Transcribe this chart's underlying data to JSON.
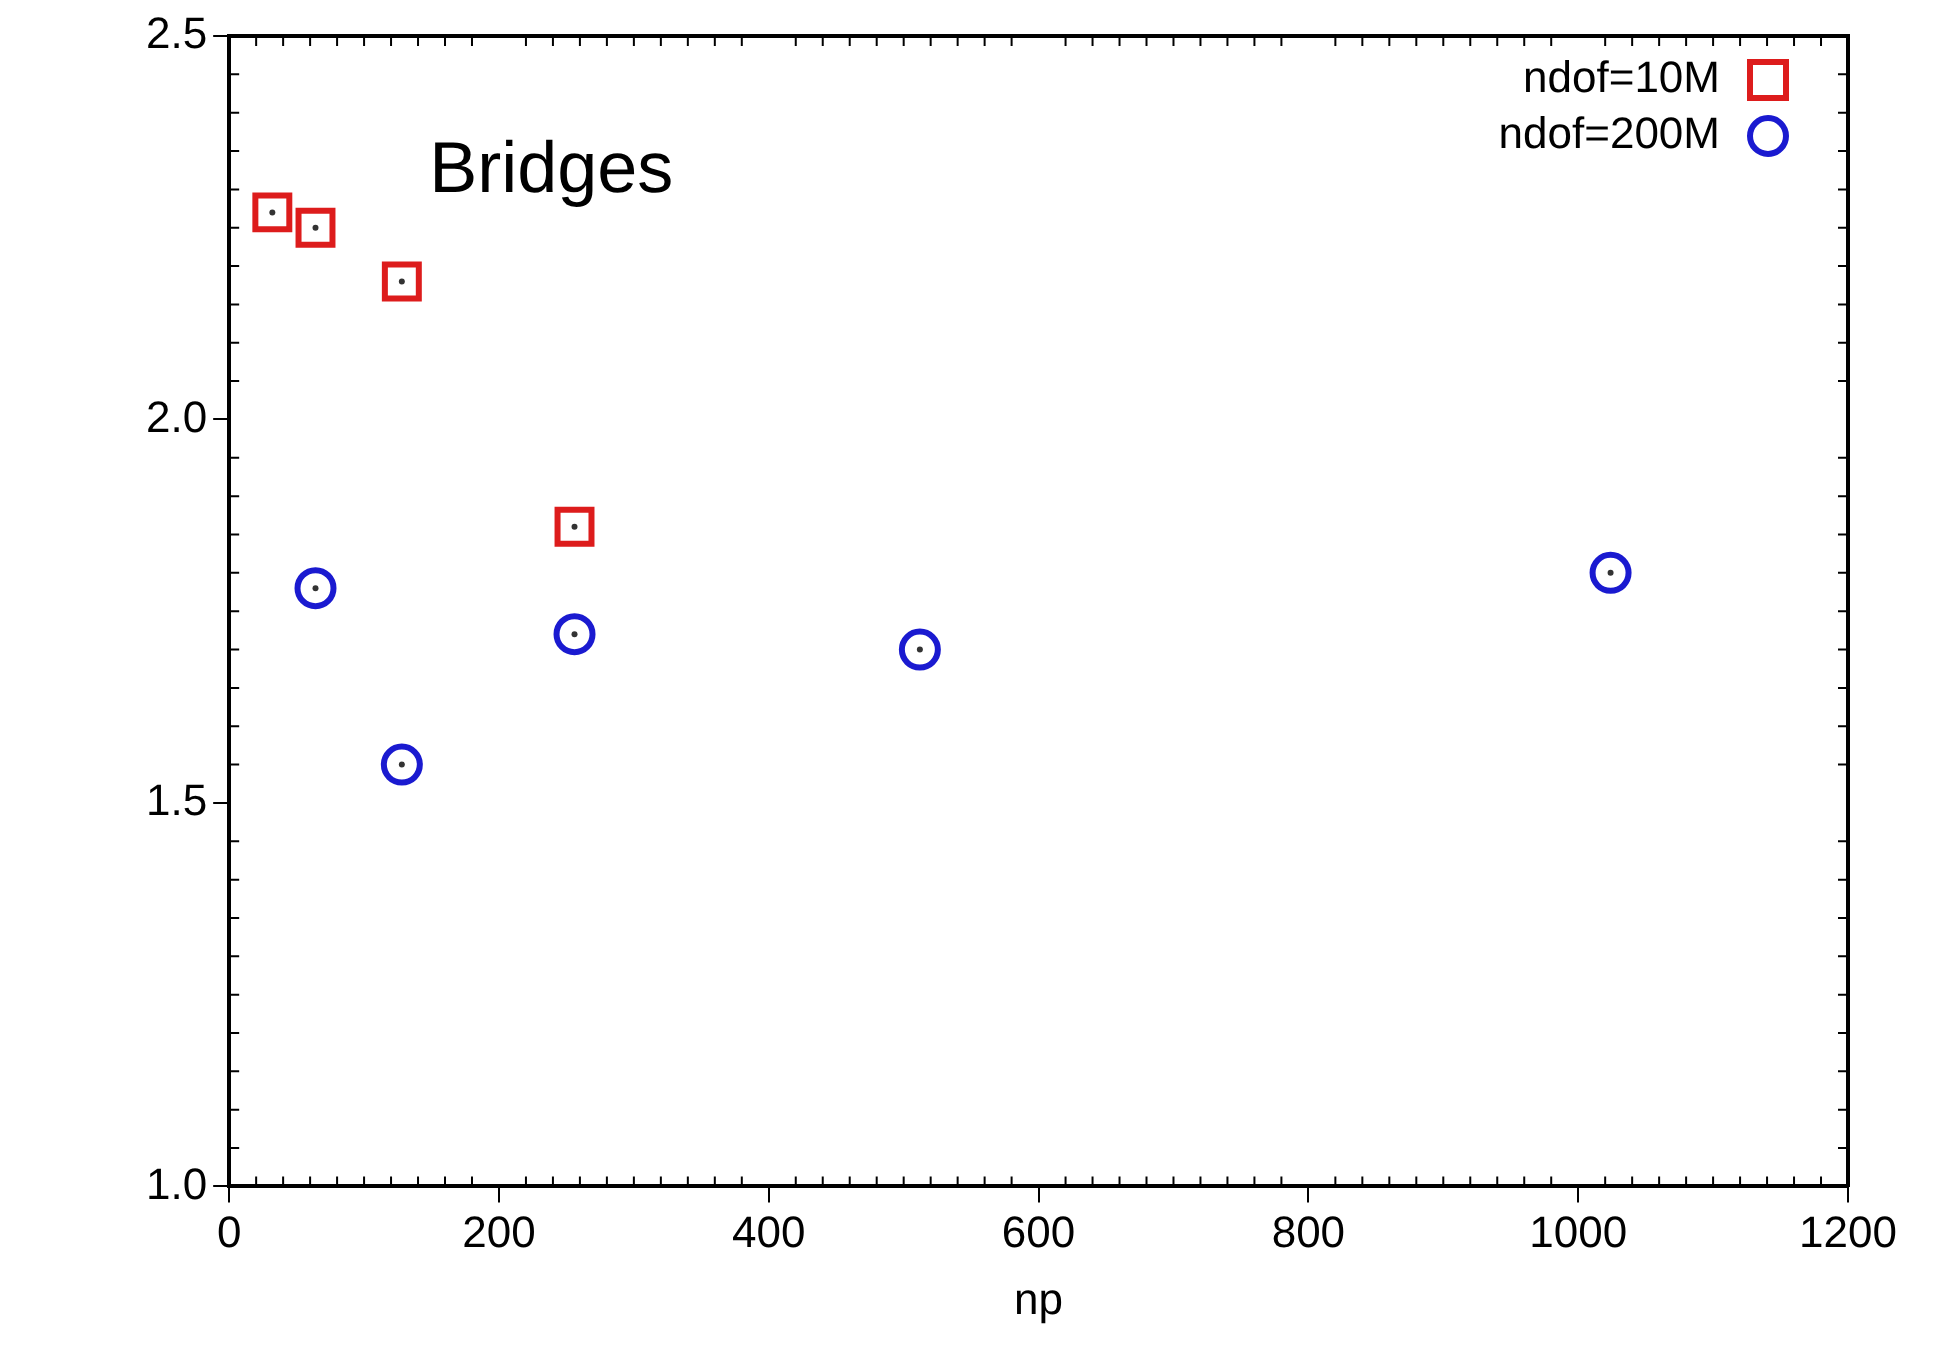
{
  "chart_data": {
    "type": "scatter",
    "xlabel": "np",
    "annotations": [
      "Bridges"
    ],
    "xlim": [
      0,
      1200
    ],
    "xticks": [
      0,
      200,
      400,
      600,
      800,
      1000,
      1200
    ],
    "ylim": [
      1.0,
      2.5
    ],
    "yticks": [
      {
        "value": 1.0,
        "label": "1.0"
      },
      {
        "value": 1.5,
        "label": "1.5"
      },
      {
        "value": 2.0,
        "label": "2.0"
      },
      {
        "value": 2.5,
        "label": "2.5"
      }
    ],
    "grid": false,
    "legend": "top right",
    "series": [
      {
        "name": "ndof=10M",
        "color": "#dd1c1c",
        "marker": "square",
        "x": [
          32,
          64,
          128,
          256
        ],
        "values": [
          2.27,
          2.25,
          2.18,
          1.86
        ]
      },
      {
        "name": "ndof=200M",
        "color": "#1a1ad0",
        "marker": "circle",
        "x": [
          64,
          128,
          256,
          512,
          1024
        ],
        "values": [
          1.78,
          1.55,
          1.72,
          1.7,
          1.8
        ]
      }
    ]
  }
}
